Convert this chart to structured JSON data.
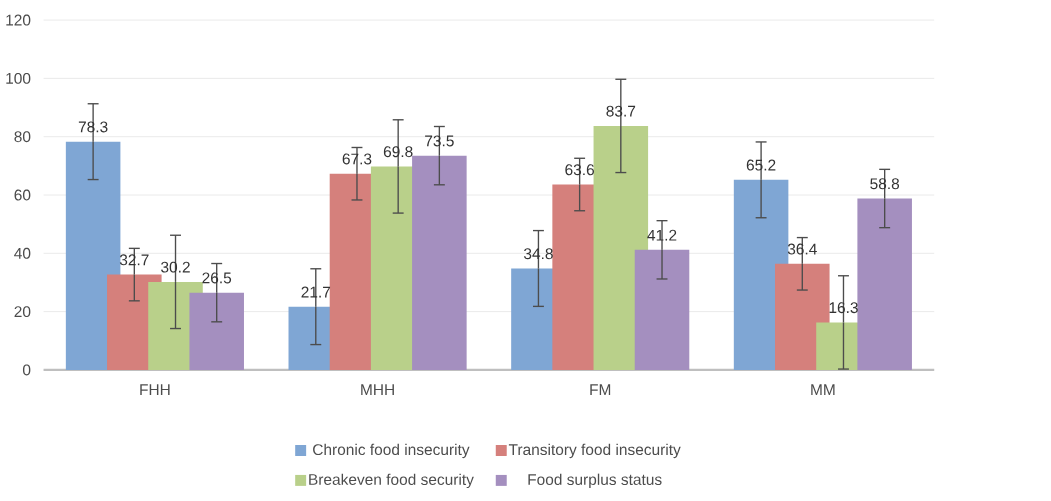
{
  "chart_data": {
    "type": "bar",
    "categories": [
      "FHH",
      "MHH",
      "FM",
      "MM"
    ],
    "series": [
      {
        "name": "Chronic food insecurity",
        "color": "#7fa6d4",
        "values": [
          78.3,
          21.7,
          34.8,
          65.2
        ],
        "errors": [
          13,
          13,
          13,
          13
        ]
      },
      {
        "name": "Transitory food insecurity",
        "color": "#d5807c",
        "values": [
          32.7,
          67.3,
          63.6,
          36.4
        ],
        "errors": [
          9,
          9,
          9,
          9
        ]
      },
      {
        "name": "Breakeven food security",
        "color": "#b9d08a",
        "values": [
          30.2,
          69.8,
          83.7,
          16.3
        ],
        "errors": [
          16,
          16,
          16,
          16
        ]
      },
      {
        "name": "Food surplus status",
        "color": "#a48fbf",
        "values": [
          26.5,
          73.5,
          41.2,
          58.8
        ],
        "errors": [
          10,
          10,
          10,
          10
        ]
      }
    ],
    "ylim": [
      0,
      120
    ],
    "yticks": [
      0,
      20,
      40,
      60,
      80,
      100,
      120
    ],
    "grid": "y",
    "legend": "bottom",
    "data_labels": true
  }
}
